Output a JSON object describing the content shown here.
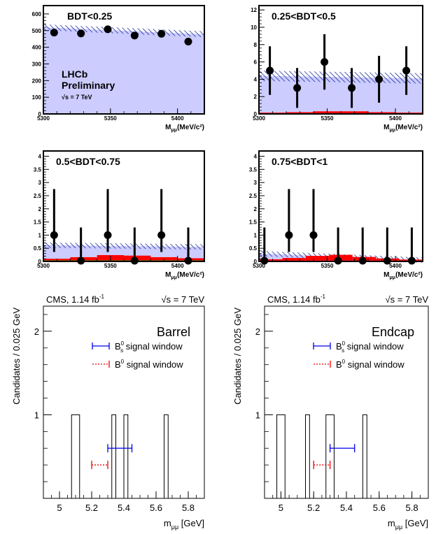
{
  "colors": {
    "background_fill": "#ccccff",
    "hatch": "#1f2f99",
    "signal_red": "#ff0000",
    "signal_green": "#22aa22",
    "cms_blue": "#0000ee",
    "cms_red": "#ee0000"
  },
  "chart_data": [
    {
      "type": "scatter",
      "title": "BDT<0.25",
      "xlabel": "M_μμ(MeV/c²)",
      "xlabel_main": "M",
      "xlabel_sub": "μμ",
      "xlabel_unit": "(MeV/c²)",
      "ylabel": "",
      "xlim": [
        5300,
        5420
      ],
      "ylim": [
        0,
        650
      ],
      "xticks": [
        "5300",
        "5350",
        "5400"
      ],
      "yticks": [
        "0",
        "100",
        "200",
        "300",
        "400",
        "500",
        "600"
      ],
      "ytick_values": [
        0,
        100,
        200,
        300,
        400,
        500,
        600
      ],
      "grid": false,
      "x": [
        5308,
        5328,
        5348,
        5368,
        5388,
        5408
      ],
      "values": [
        488,
        483,
        508,
        470,
        481,
        434
      ],
      "errors": [
        0,
        0,
        0,
        0,
        0,
        0
      ],
      "background_expectation": {
        "start": 520,
        "end": 478,
        "band_halfwidth": 18
      },
      "signal_red": [
        0,
        0,
        0,
        0,
        0,
        0
      ],
      "signal_green": [
        0,
        0,
        0,
        0,
        0,
        0
      ],
      "annotations": {
        "experiment": "LHCb",
        "status": "Preliminary",
        "energy": "√s = 7 TeV"
      }
    },
    {
      "type": "scatter",
      "title": "0.25<BDT<0.5",
      "xlabel": "M_μμ(MeV/c²)",
      "xlabel_main": "M",
      "xlabel_sub": "μμ",
      "xlabel_unit": "(MeV/c²)",
      "ylabel": "",
      "xlim": [
        5300,
        5420
      ],
      "ylim": [
        0,
        12.5
      ],
      "xticks": [
        "5300",
        "5350",
        "5400"
      ],
      "yticks": [
        "0",
        "2",
        "4",
        "6",
        "8",
        "10",
        "12"
      ],
      "ytick_values": [
        0,
        2,
        4,
        6,
        8,
        10,
        12
      ],
      "grid": false,
      "x": [
        5308,
        5328,
        5348,
        5368,
        5388,
        5408
      ],
      "values": [
        5,
        3,
        6,
        3,
        4,
        5
      ],
      "errors": [
        2.8,
        2.3,
        3.2,
        2.3,
        2.7,
        2.8
      ],
      "background_expectation": {
        "start": 4.4,
        "end": 4.1,
        "band_halfwidth": 0.6
      },
      "signal_red": [
        0.1,
        0.15,
        0.25,
        0.25,
        0.15,
        0.1
      ],
      "signal_green": [
        0.05,
        0.05,
        0.05,
        0.05,
        0.05,
        0.05
      ]
    },
    {
      "type": "scatter",
      "title": "0.5<BDT<0.75",
      "xlabel": "M_μμ(MeV/c²)",
      "xlabel_main": "M",
      "xlabel_sub": "μμ",
      "xlabel_unit": "(MeV/c²)",
      "ylabel": "",
      "xlim": [
        5300,
        5420
      ],
      "ylim": [
        0,
        4.2
      ],
      "xticks": [
        "5300",
        "5350",
        "5400"
      ],
      "yticks": [
        "0",
        "0.5",
        "1",
        "1.5",
        "2",
        "2.5",
        "3",
        "3.5",
        "4"
      ],
      "ytick_values": [
        0,
        0.5,
        1,
        1.5,
        2,
        2.5,
        3,
        3.5,
        4
      ],
      "grid": false,
      "x": [
        5308,
        5328,
        5348,
        5368,
        5388,
        5408
      ],
      "values": [
        1,
        0,
        1,
        0,
        1,
        0
      ],
      "errors": [
        1.75,
        1.29,
        1.75,
        1.29,
        1.75,
        1.29
      ],
      "error_low": [
        0.64,
        0,
        0.64,
        0,
        0.64,
        0
      ],
      "background_expectation": {
        "start": 0.62,
        "end": 0.55,
        "band_halfwidth": 0.1
      },
      "signal_red": [
        0.06,
        0.12,
        0.2,
        0.18,
        0.12,
        0.08
      ],
      "signal_green": [
        0.04,
        0.04,
        0.04,
        0.04,
        0.04,
        0.04
      ]
    },
    {
      "type": "scatter",
      "title": "0.75<BDT<1",
      "xlabel": "M_μμ(MeV/c²)",
      "xlabel_main": "M",
      "xlabel_sub": "μμ",
      "xlabel_unit": "(MeV/c²)",
      "ylabel": "",
      "xlim": [
        5300,
        5420
      ],
      "ylim": [
        0,
        4.2
      ],
      "xticks": [
        "5300",
        "5350",
        "5400"
      ],
      "yticks": [
        "0",
        "0.5",
        "1",
        "1.5",
        "2",
        "2.5",
        "3",
        "3.5",
        "4"
      ],
      "ytick_values": [
        0,
        0.5,
        1,
        1.5,
        2,
        2.5,
        3,
        3.5,
        4
      ],
      "grid": false,
      "x": [
        5304,
        5322,
        5340,
        5358,
        5376,
        5394,
        5412
      ],
      "values": [
        0,
        1,
        1,
        0,
        0,
        0,
        0
      ],
      "errors": [
        1.29,
        1.75,
        1.75,
        1.29,
        1.29,
        1.29,
        1.29
      ],
      "error_low": [
        0,
        0.64,
        0.64,
        0,
        0,
        0,
        0
      ],
      "background_expectation": {
        "start": 0.3,
        "end": 0.05,
        "band_halfwidth": 0.1
      },
      "signal_red": [
        0.05,
        0.1,
        0.18,
        0.22,
        0.14,
        0.08,
        0.04
      ],
      "signal_green": [
        0.03,
        0.03,
        0.03,
        0.03,
        0.03,
        0.03,
        0.03
      ]
    },
    {
      "type": "bar",
      "title": "Barrel",
      "header_left": "CMS, 1.14 fb",
      "header_left_sup": "-1",
      "header_right": "√s = 7 TeV",
      "xlabel_main": "m",
      "xlabel_sub": "μμ",
      "xlabel_unit": " [GeV]",
      "ylabel": "Candidates / 0.025 GeV",
      "xlim": [
        4.9,
        5.9
      ],
      "ylim": [
        0,
        2.3
      ],
      "xticks": [
        "5",
        "5.2",
        "5.4",
        "5.6",
        "5.8"
      ],
      "xtick_values": [
        5,
        5.2,
        5.4,
        5.6,
        5.8
      ],
      "yticks": [
        "1",
        "2"
      ],
      "ytick_values": [
        1,
        2
      ],
      "grid": false,
      "bins": [
        {
          "x0": 5.075,
          "x1": 5.125,
          "count": 1
        },
        {
          "x0": 5.325,
          "x1": 5.35,
          "count": 1
        },
        {
          "x0": 5.4,
          "x1": 5.425,
          "count": 1
        },
        {
          "x0": 5.65,
          "x1": 5.675,
          "count": 1
        }
      ],
      "bs_window": [
        5.3,
        5.45
      ],
      "b0_window": [
        5.2,
        5.3
      ],
      "bs_window_y": 0.6,
      "b0_window_y": 0.4,
      "legend": {
        "bs_label": "B",
        "bs_sub": "s",
        "bs_sup": "0",
        "bs_text": " signal window",
        "b0_label": "B",
        "b0_sup": "0",
        "b0_text": " signal window"
      }
    },
    {
      "type": "bar",
      "title": "Endcap",
      "header_left": "CMS, 1.14 fb",
      "header_left_sup": "-1",
      "header_right": "√s = 7 TeV",
      "xlabel_main": "m",
      "xlabel_sub": "μμ",
      "xlabel_unit": " [GeV]",
      "ylabel": "Candidates / 0.025 GeV",
      "xlim": [
        4.9,
        5.9
      ],
      "ylim": [
        0,
        2.3
      ],
      "xticks": [
        "5",
        "5.2",
        "5.4",
        "5.6",
        "5.8"
      ],
      "xtick_values": [
        5,
        5.2,
        5.4,
        5.6,
        5.8
      ],
      "yticks": [
        "1",
        "2"
      ],
      "ytick_values": [
        1,
        2
      ],
      "grid": false,
      "bins": [
        {
          "x0": 4.975,
          "x1": 5.025,
          "count": 1
        },
        {
          "x0": 5.15,
          "x1": 5.175,
          "count": 1
        },
        {
          "x0": 5.275,
          "x1": 5.325,
          "count": 1
        },
        {
          "x0": 5.5,
          "x1": 5.525,
          "count": 1
        }
      ],
      "bs_window": [
        5.3,
        5.45
      ],
      "b0_window": [
        5.2,
        5.3
      ],
      "bs_window_y": 0.6,
      "b0_window_y": 0.4,
      "legend": {
        "bs_label": "B",
        "bs_sub": "s",
        "bs_sup": "0",
        "bs_text": " signal window",
        "b0_label": "B",
        "b0_sup": "0",
        "b0_text": " signal window"
      }
    }
  ]
}
